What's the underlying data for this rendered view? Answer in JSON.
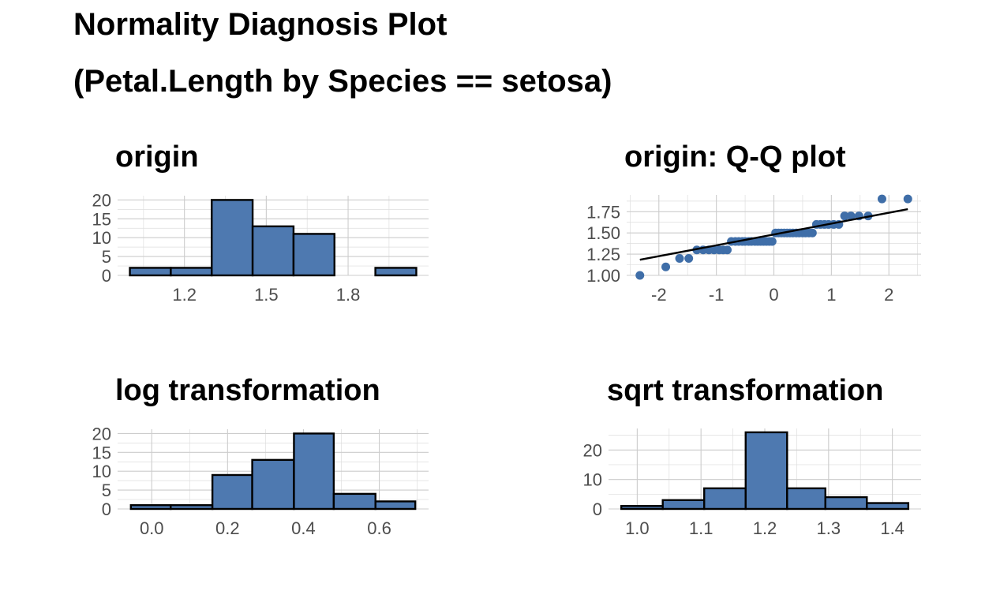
{
  "main_title": [
    "Normality Diagnosis Plot",
    "(Petal.Length by Species == setosa)"
  ],
  "colors": {
    "fill": "#4e79b0",
    "point": "#3f6ea8",
    "outline": "#000000",
    "line": "#000000"
  },
  "chart_data": [
    {
      "id": "origin",
      "type": "bar",
      "title": "origin",
      "bins": [
        [
          1.0,
          1.15
        ],
        [
          1.15,
          1.3
        ],
        [
          1.3,
          1.45
        ],
        [
          1.45,
          1.6
        ],
        [
          1.6,
          1.75
        ],
        [
          1.75,
          1.9
        ],
        [
          1.9,
          2.05
        ]
      ],
      "values": [
        2,
        2,
        20,
        13,
        11,
        0,
        2
      ],
      "xlim": [
        0.955,
        2.095
      ],
      "ylim": [
        0,
        20.5
      ],
      "xticks": [
        1.2,
        1.5,
        1.8
      ],
      "xticklabels": [
        "1.2",
        "1.5",
        "1.8"
      ],
      "yticks": [
        0,
        5,
        10,
        15,
        20
      ],
      "yticklabels": [
        "0",
        "5",
        "10",
        "15",
        "20"
      ],
      "grid": true
    },
    {
      "id": "qq",
      "type": "scatter",
      "title": "origin: Q-Q plot",
      "x": [
        -2.33,
        -1.88,
        -1.64,
        -1.48,
        -1.34,
        -1.23,
        -1.13,
        -1.04,
        -0.95,
        -0.88,
        -0.81,
        -0.74,
        -0.67,
        -0.61,
        -0.55,
        -0.5,
        -0.44,
        -0.39,
        -0.33,
        -0.28,
        -0.23,
        -0.18,
        -0.13,
        -0.08,
        -0.03,
        0.03,
        0.08,
        0.13,
        0.18,
        0.23,
        0.28,
        0.33,
        0.39,
        0.44,
        0.5,
        0.55,
        0.61,
        0.67,
        0.74,
        0.81,
        0.88,
        0.95,
        1.04,
        1.13,
        1.23,
        1.34,
        1.48,
        1.64,
        1.88,
        2.33
      ],
      "y": [
        1.0,
        1.1,
        1.2,
        1.2,
        1.3,
        1.3,
        1.3,
        1.3,
        1.3,
        1.3,
        1.3,
        1.4,
        1.4,
        1.4,
        1.4,
        1.4,
        1.4,
        1.4,
        1.4,
        1.4,
        1.4,
        1.4,
        1.4,
        1.4,
        1.4,
        1.5,
        1.5,
        1.5,
        1.5,
        1.5,
        1.5,
        1.5,
        1.5,
        1.5,
        1.5,
        1.5,
        1.5,
        1.5,
        1.6,
        1.6,
        1.6,
        1.6,
        1.6,
        1.6,
        1.7,
        1.7,
        1.7,
        1.7,
        1.9,
        1.9
      ],
      "line": {
        "x": [
          -2.33,
          2.33
        ],
        "y": [
          1.184,
          1.78
        ]
      },
      "xlim": [
        -2.56,
        2.56
      ],
      "ylim": [
        1.0,
        1.92
      ],
      "xticks": [
        -2,
        -1,
        0,
        1,
        2
      ],
      "xticklabels": [
        "-2",
        "-1",
        "0",
        "1",
        "2"
      ],
      "yticks": [
        1.0,
        1.25,
        1.5,
        1.75
      ],
      "yticklabels": [
        "1.00",
        "1.25",
        "1.50",
        "1.75"
      ],
      "grid": true
    },
    {
      "id": "log",
      "type": "bar",
      "title": "log transformation",
      "bins": [
        [
          -0.055,
          0.05
        ],
        [
          0.05,
          0.16
        ],
        [
          0.16,
          0.265
        ],
        [
          0.265,
          0.375
        ],
        [
          0.375,
          0.48
        ],
        [
          0.48,
          0.59
        ],
        [
          0.59,
          0.695
        ]
      ],
      "values": [
        1,
        1,
        9,
        13,
        20,
        4,
        2
      ],
      "xlim": [
        -0.09,
        0.73
      ],
      "ylim": [
        0,
        20.5
      ],
      "xticks": [
        0.0,
        0.2,
        0.4,
        0.6
      ],
      "xticklabels": [
        "0.0",
        "0.2",
        "0.4",
        "0.6"
      ],
      "yticks": [
        0,
        5,
        10,
        15,
        20
      ],
      "yticklabels": [
        "0",
        "5",
        "10",
        "15",
        "20"
      ],
      "grid": true
    },
    {
      "id": "sqrt",
      "type": "bar",
      "title": "sqrt transformation",
      "bins": [
        [
          0.975,
          1.04
        ],
        [
          1.04,
          1.105
        ],
        [
          1.105,
          1.17
        ],
        [
          1.17,
          1.235
        ],
        [
          1.235,
          1.295
        ],
        [
          1.295,
          1.36
        ],
        [
          1.36,
          1.425
        ]
      ],
      "values": [
        1,
        3,
        7,
        26,
        7,
        4,
        2
      ],
      "xlim": [
        0.955,
        1.445
      ],
      "ylim": [
        0,
        26.5
      ],
      "xticks": [
        1.0,
        1.1,
        1.2,
        1.3,
        1.4
      ],
      "xticklabels": [
        "1.0",
        "1.1",
        "1.2",
        "1.3",
        "1.4"
      ],
      "yticks": [
        0,
        10,
        20
      ],
      "yticklabels": [
        "0",
        "10",
        "20"
      ],
      "grid": true
    }
  ]
}
